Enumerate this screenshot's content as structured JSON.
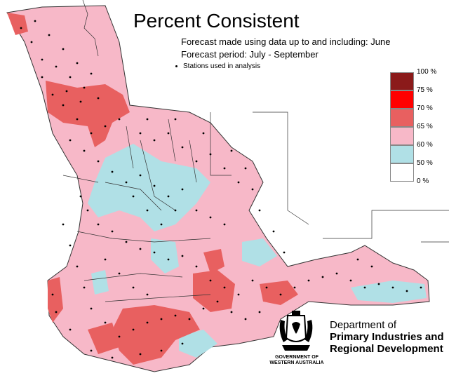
{
  "title": "Percent Consistent",
  "subtitle_forecast_made": "Forecast made using data up to and including: June",
  "subtitle_forecast_period": "Forecast period: July - September",
  "stations_label": "Stations used in analysis",
  "legend": [
    {
      "label": "100 %",
      "color": "#8b1a1a"
    },
    {
      "label": "75 %",
      "color": "#ff0000"
    },
    {
      "label": "70 %",
      "color": "#e86060"
    },
    {
      "label": "65 %",
      "color": "#f7b8c8"
    },
    {
      "label": "60 %",
      "color": "#b0e0e6"
    },
    {
      "label": "50 %",
      "color": "#ffffff"
    },
    {
      "label": "0 %",
      "color": null
    }
  ],
  "colors": {
    "pink": "#f7b8c8",
    "red": "#e86060",
    "cyan": "#b0e0e6",
    "border": "#2b2b2b"
  },
  "department": {
    "line1": "Department of",
    "line2": "Primary Industries and",
    "line3": "Regional Development"
  },
  "government": {
    "line1": "GOVERNMENT OF",
    "line2": "WESTERN AUSTRALIA"
  }
}
